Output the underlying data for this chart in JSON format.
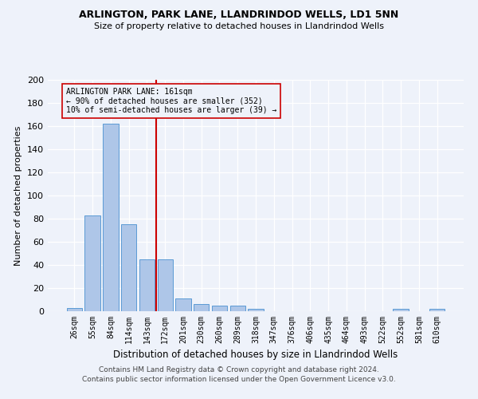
{
  "title": "ARLINGTON, PARK LANE, LLANDRINDOD WELLS, LD1 5NN",
  "subtitle": "Size of property relative to detached houses in Llandrindod Wells",
  "xlabel": "Distribution of detached houses by size in Llandrindod Wells",
  "ylabel": "Number of detached properties",
  "footnote1": "Contains HM Land Registry data © Crown copyright and database right 2024.",
  "footnote2": "Contains public sector information licensed under the Open Government Licence v3.0.",
  "bar_labels": [
    "26sqm",
    "55sqm",
    "84sqm",
    "114sqm",
    "143sqm",
    "172sqm",
    "201sqm",
    "230sqm",
    "260sqm",
    "289sqm",
    "318sqm",
    "347sqm",
    "376sqm",
    "406sqm",
    "435sqm",
    "464sqm",
    "493sqm",
    "522sqm",
    "552sqm",
    "581sqm",
    "610sqm"
  ],
  "bar_values": [
    3,
    83,
    162,
    75,
    45,
    45,
    11,
    6,
    5,
    5,
    2,
    0,
    0,
    0,
    0,
    0,
    0,
    0,
    2,
    0,
    2
  ],
  "bar_color": "#aec6e8",
  "bar_edge_color": "#5b9bd5",
  "vline_x_idx": 4.5,
  "vline_color": "#cc0000",
  "ylim": [
    0,
    200
  ],
  "yticks": [
    0,
    20,
    40,
    60,
    80,
    100,
    120,
    140,
    160,
    180,
    200
  ],
  "annotation_title": "ARLINGTON PARK LANE: 161sqm",
  "annotation_line1": "← 90% of detached houses are smaller (352)",
  "annotation_line2": "10% of semi-detached houses are larger (39) →",
  "background_color": "#eef2fa",
  "grid_color": "#ffffff"
}
